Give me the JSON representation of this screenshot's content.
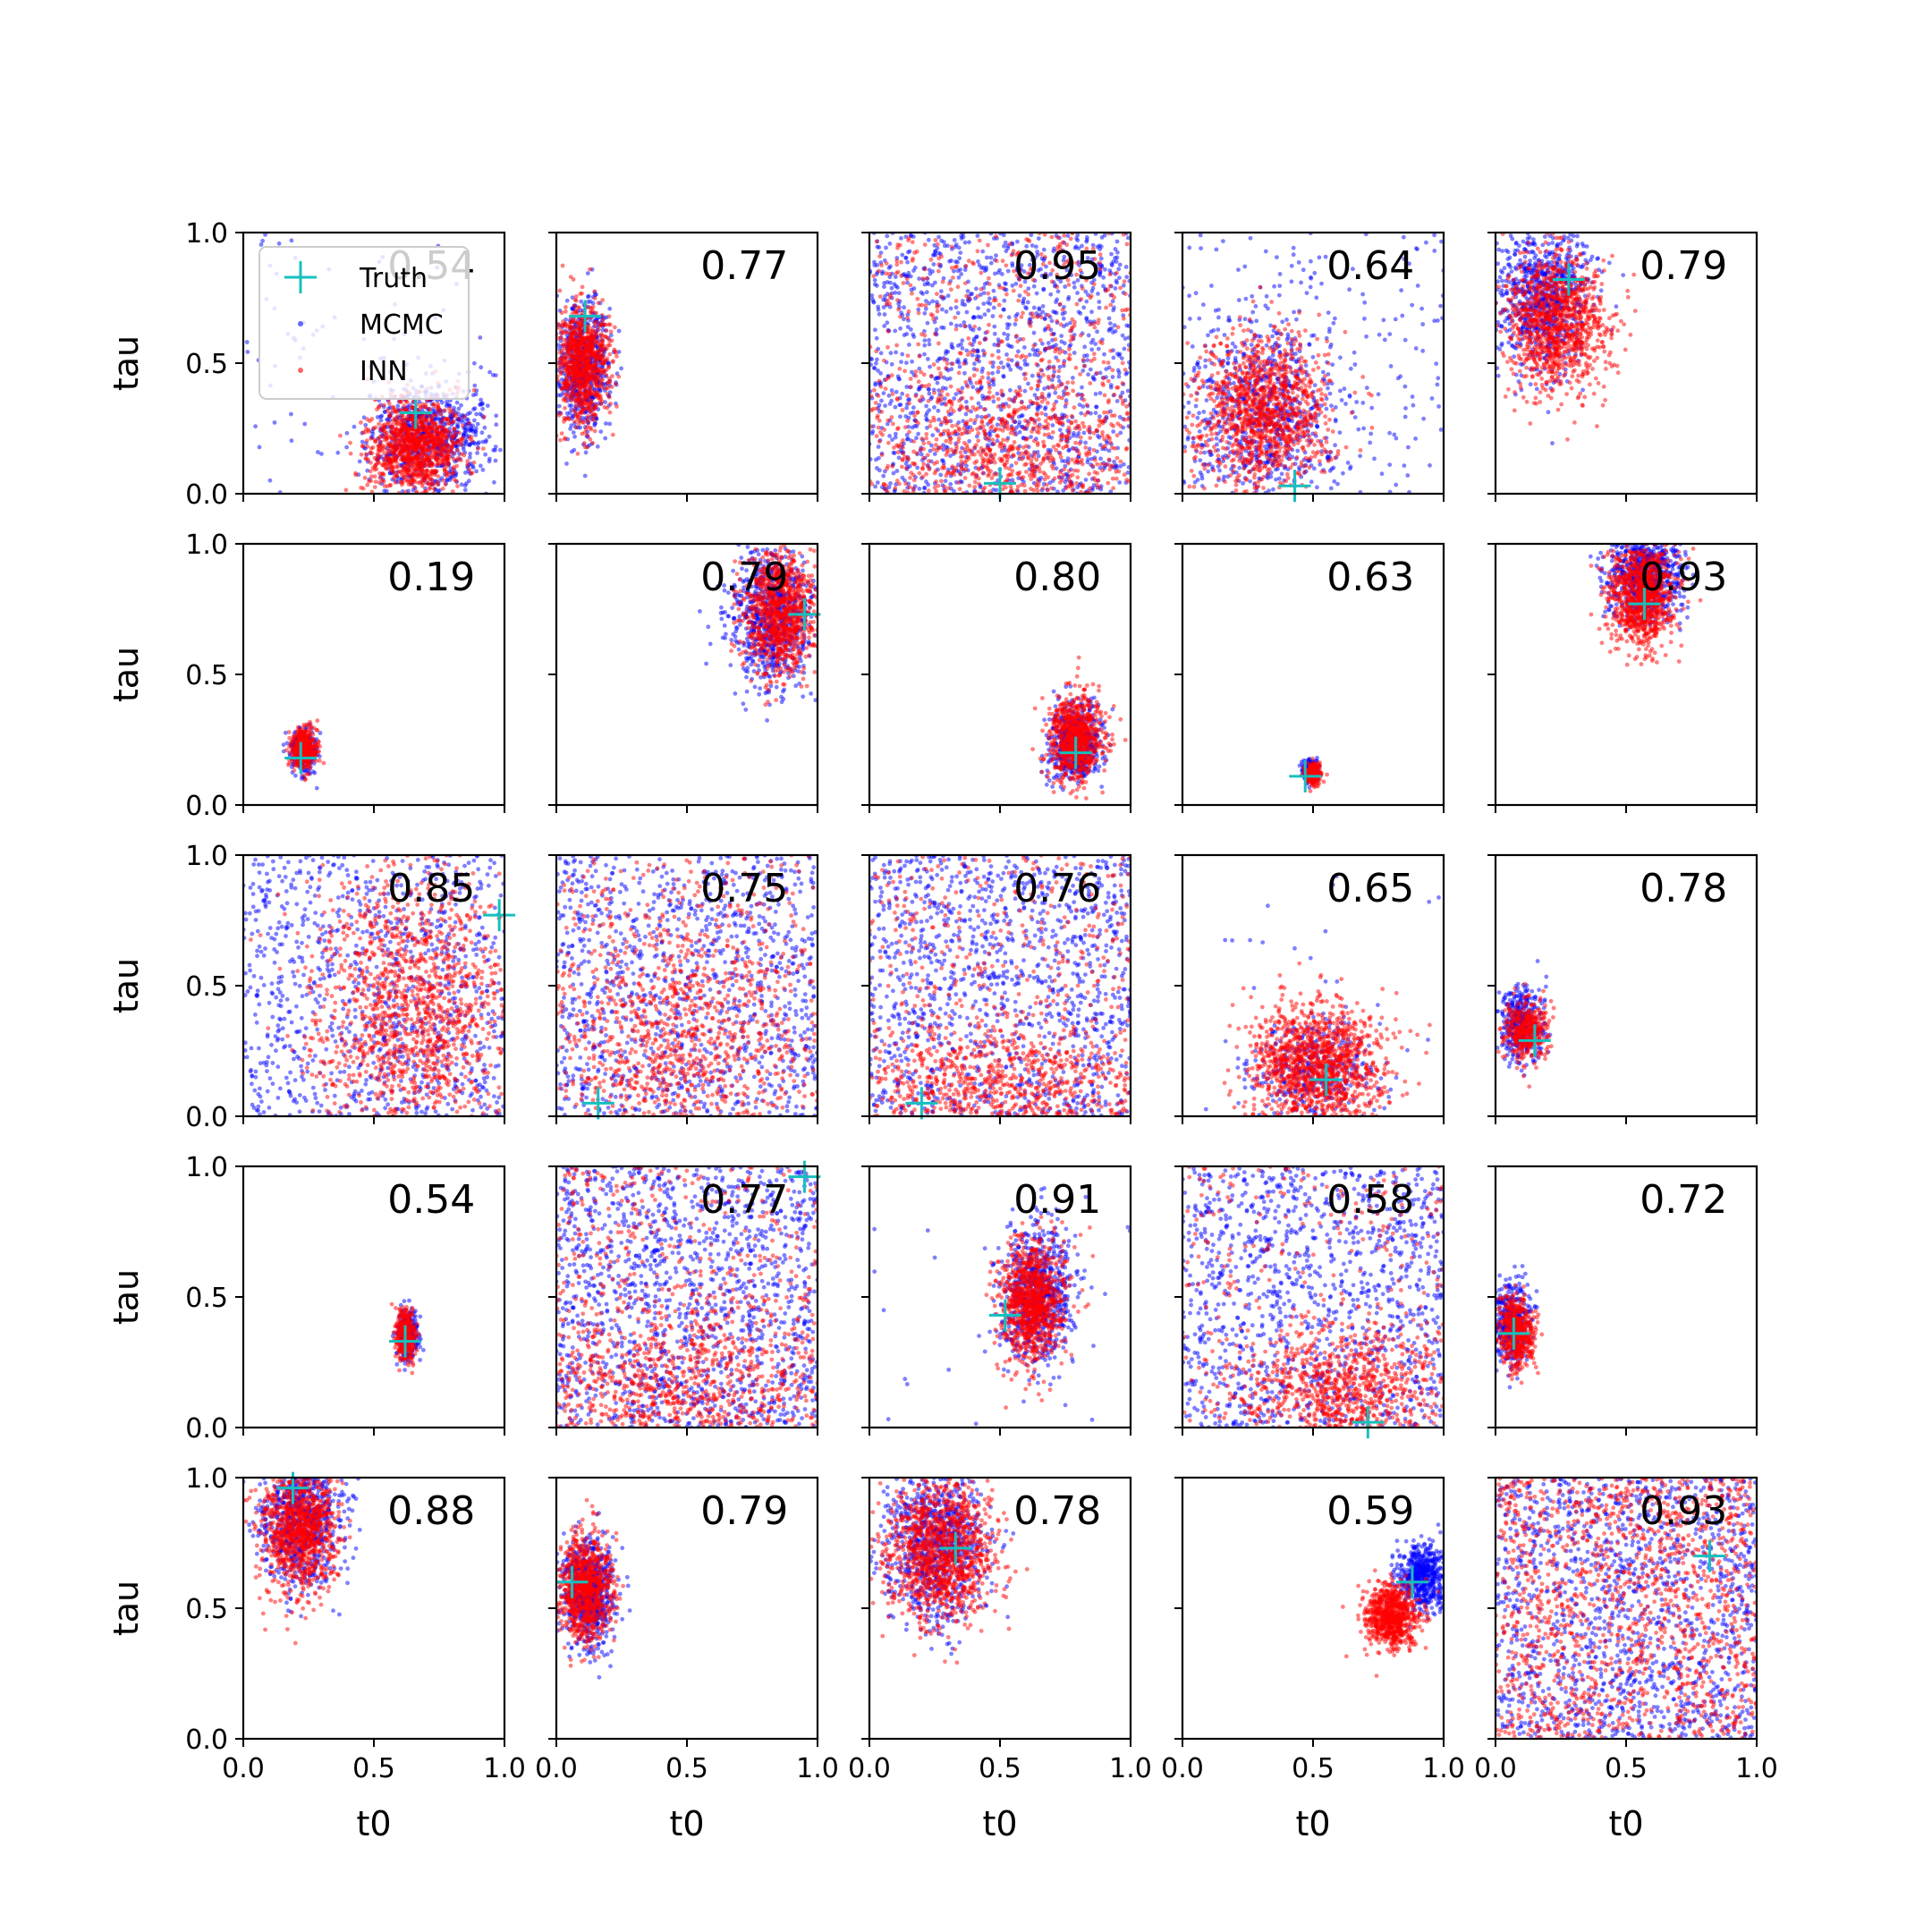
{
  "chart_data": {
    "type": "scatter",
    "layout": "5x5 grid of scatter panels",
    "xlabel": "t0",
    "ylabel": "tau",
    "xlim": [
      0.0,
      1.0
    ],
    "ylim": [
      0.0,
      1.0
    ],
    "x_ticks": [
      "0.0",
      "0.5",
      "1.0"
    ],
    "y_ticks": [
      "0.0",
      "0.5",
      "1.0"
    ],
    "legend": {
      "placement": "upper-left of first panel",
      "entries": [
        {
          "label": "Truth",
          "marker": "plus",
          "color": "#17bfbf"
        },
        {
          "label": "MCMC",
          "marker": "dot",
          "color": "#0000ff"
        },
        {
          "label": "INN",
          "marker": "dot",
          "color": "#ff0000"
        }
      ]
    },
    "panels": [
      {
        "score": "0.54",
        "truth": [
          0.66,
          0.31
        ],
        "mcmc": {
          "cx": 0.72,
          "cy": 0.22,
          "sx": 0.12,
          "sy": 0.1,
          "n": 800,
          "uniform": 0.1
        },
        "inn": {
          "cx": 0.66,
          "cy": 0.18,
          "sx": 0.09,
          "sy": 0.09,
          "n": 1100,
          "uniform": 0.0
        }
      },
      {
        "score": "0.77",
        "truth": [
          0.11,
          0.68
        ],
        "mcmc": {
          "cx": 0.1,
          "cy": 0.48,
          "sx": 0.05,
          "sy": 0.12,
          "n": 700,
          "uniform": 0
        },
        "inn": {
          "cx": 0.1,
          "cy": 0.5,
          "sx": 0.05,
          "sy": 0.11,
          "n": 900,
          "uniform": 0
        }
      },
      {
        "score": "0.95",
        "truth": [
          0.5,
          0.04
        ],
        "mcmc": {
          "cx": 0.5,
          "cy": 0.5,
          "sx": 0.3,
          "sy": 0.3,
          "n": 1300,
          "uniform": 1.0
        },
        "inn": {
          "cx": 0.55,
          "cy": 0.15,
          "sx": 0.25,
          "sy": 0.15,
          "n": 1300,
          "uniform": 0.45
        }
      },
      {
        "score": "0.64",
        "truth": [
          0.43,
          0.03
        ],
        "mcmc": {
          "cx": 0.3,
          "cy": 0.32,
          "sx": 0.14,
          "sy": 0.18,
          "n": 900,
          "uniform": 0.25
        },
        "inn": {
          "cx": 0.3,
          "cy": 0.32,
          "sx": 0.13,
          "sy": 0.15,
          "n": 1200,
          "uniform": 0
        }
      },
      {
        "score": "0.79",
        "truth": [
          0.28,
          0.82
        ],
        "mcmc": {
          "cx": 0.18,
          "cy": 0.75,
          "sx": 0.09,
          "sy": 0.14,
          "n": 800,
          "uniform": 0
        },
        "inn": {
          "cx": 0.23,
          "cy": 0.65,
          "sx": 0.1,
          "sy": 0.13,
          "n": 1100,
          "uniform": 0
        }
      },
      {
        "score": "0.19",
        "truth": [
          0.22,
          0.18
        ],
        "mcmc": {
          "cx": 0.23,
          "cy": 0.21,
          "sx": 0.025,
          "sy": 0.04,
          "n": 300,
          "uniform": 0
        },
        "inn": {
          "cx": 0.23,
          "cy": 0.22,
          "sx": 0.025,
          "sy": 0.04,
          "n": 400,
          "uniform": 0
        }
      },
      {
        "score": "0.79",
        "truth": [
          0.95,
          0.73
        ],
        "mcmc": {
          "cx": 0.83,
          "cy": 0.72,
          "sx": 0.08,
          "sy": 0.13,
          "n": 800,
          "uniform": 0
        },
        "inn": {
          "cx": 0.86,
          "cy": 0.74,
          "sx": 0.07,
          "sy": 0.12,
          "n": 1000,
          "uniform": 0
        }
      },
      {
        "score": "0.80",
        "truth": [
          0.79,
          0.2
        ],
        "mcmc": {
          "cx": 0.79,
          "cy": 0.24,
          "sx": 0.05,
          "sy": 0.07,
          "n": 600,
          "uniform": 0
        },
        "inn": {
          "cx": 0.79,
          "cy": 0.26,
          "sx": 0.05,
          "sy": 0.08,
          "n": 800,
          "uniform": 0
        }
      },
      {
        "score": "0.63",
        "truth": [
          0.47,
          0.11
        ],
        "mcmc": {
          "cx": 0.49,
          "cy": 0.13,
          "sx": 0.015,
          "sy": 0.02,
          "n": 200,
          "uniform": 0
        },
        "inn": {
          "cx": 0.5,
          "cy": 0.12,
          "sx": 0.015,
          "sy": 0.02,
          "n": 250,
          "uniform": 0
        }
      },
      {
        "score": "0.93",
        "truth": [
          0.57,
          0.77
        ],
        "mcmc": {
          "cx": 0.57,
          "cy": 0.88,
          "sx": 0.07,
          "sy": 0.09,
          "n": 800,
          "uniform": 0
        },
        "inn": {
          "cx": 0.56,
          "cy": 0.8,
          "sx": 0.06,
          "sy": 0.1,
          "n": 1000,
          "uniform": 0
        }
      },
      {
        "score": "0.85",
        "truth": [
          0.98,
          0.77
        ],
        "mcmc": {
          "cx": 0.5,
          "cy": 0.5,
          "sx": 0.3,
          "sy": 0.3,
          "n": 1000,
          "uniform": 1.0
        },
        "inn": {
          "cx": 0.65,
          "cy": 0.4,
          "sx": 0.2,
          "sy": 0.28,
          "n": 1400,
          "uniform": 0
        }
      },
      {
        "score": "0.75",
        "truth": [
          0.16,
          0.05
        ],
        "mcmc": {
          "cx": 0.5,
          "cy": 0.5,
          "sx": 0.3,
          "sy": 0.3,
          "n": 1100,
          "uniform": 1.0
        },
        "inn": {
          "cx": 0.45,
          "cy": 0.3,
          "sx": 0.25,
          "sy": 0.25,
          "n": 1200,
          "uniform": 0.3
        }
      },
      {
        "score": "0.76",
        "truth": [
          0.2,
          0.05
        ],
        "mcmc": {
          "cx": 0.5,
          "cy": 0.5,
          "sx": 0.3,
          "sy": 0.3,
          "n": 1200,
          "uniform": 1.0
        },
        "inn": {
          "cx": 0.5,
          "cy": 0.12,
          "sx": 0.3,
          "sy": 0.12,
          "n": 1200,
          "uniform": 0.35
        }
      },
      {
        "score": "0.65",
        "truth": [
          0.55,
          0.14
        ],
        "mcmc": {
          "cx": 0.5,
          "cy": 0.18,
          "sx": 0.12,
          "sy": 0.1,
          "n": 400,
          "uniform": 0.05
        },
        "inn": {
          "cx": 0.52,
          "cy": 0.2,
          "sx": 0.13,
          "sy": 0.12,
          "n": 1300,
          "uniform": 0
        }
      },
      {
        "score": "0.78",
        "truth": [
          0.15,
          0.29
        ],
        "mcmc": {
          "cx": 0.1,
          "cy": 0.35,
          "sx": 0.04,
          "sy": 0.07,
          "n": 400,
          "uniform": 0
        },
        "inn": {
          "cx": 0.12,
          "cy": 0.33,
          "sx": 0.04,
          "sy": 0.06,
          "n": 400,
          "uniform": 0
        }
      },
      {
        "score": "0.54",
        "truth": [
          0.62,
          0.33
        ],
        "mcmc": {
          "cx": 0.63,
          "cy": 0.36,
          "sx": 0.02,
          "sy": 0.05,
          "n": 250,
          "uniform": 0
        },
        "inn": {
          "cx": 0.62,
          "cy": 0.35,
          "sx": 0.02,
          "sy": 0.05,
          "n": 300,
          "uniform": 0
        }
      },
      {
        "score": "0.77",
        "truth": [
          0.95,
          0.96
        ],
        "mcmc": {
          "cx": 0.5,
          "cy": 0.5,
          "sx": 0.3,
          "sy": 0.3,
          "n": 1400,
          "uniform": 1.0
        },
        "inn": {
          "cx": 0.5,
          "cy": 0.15,
          "sx": 0.3,
          "sy": 0.18,
          "n": 1300,
          "uniform": 0.4
        }
      },
      {
        "score": "0.91",
        "truth": [
          0.52,
          0.43
        ],
        "mcmc": {
          "cx": 0.64,
          "cy": 0.5,
          "sx": 0.07,
          "sy": 0.13,
          "n": 800,
          "uniform": 0.02
        },
        "inn": {
          "cx": 0.62,
          "cy": 0.48,
          "sx": 0.06,
          "sy": 0.12,
          "n": 1000,
          "uniform": 0
        }
      },
      {
        "score": "0.58",
        "truth": [
          0.71,
          0.02
        ],
        "mcmc": {
          "cx": 0.5,
          "cy": 0.5,
          "sx": 0.3,
          "sy": 0.3,
          "n": 1200,
          "uniform": 1.0
        },
        "inn": {
          "cx": 0.62,
          "cy": 0.12,
          "sx": 0.2,
          "sy": 0.14,
          "n": 1200,
          "uniform": 0.25
        }
      },
      {
        "score": "0.72",
        "truth": [
          0.07,
          0.36
        ],
        "mcmc": {
          "cx": 0.06,
          "cy": 0.4,
          "sx": 0.035,
          "sy": 0.08,
          "n": 400,
          "uniform": 0
        },
        "inn": {
          "cx": 0.08,
          "cy": 0.37,
          "sx": 0.035,
          "sy": 0.07,
          "n": 500,
          "uniform": 0
        }
      },
      {
        "score": "0.88",
        "truth": [
          0.19,
          0.96
        ],
        "mcmc": {
          "cx": 0.22,
          "cy": 0.83,
          "sx": 0.08,
          "sy": 0.12,
          "n": 800,
          "uniform": 0
        },
        "inn": {
          "cx": 0.22,
          "cy": 0.8,
          "sx": 0.07,
          "sy": 0.12,
          "n": 1000,
          "uniform": 0
        }
      },
      {
        "score": "0.79",
        "truth": [
          0.06,
          0.6
        ],
        "mcmc": {
          "cx": 0.12,
          "cy": 0.56,
          "sx": 0.05,
          "sy": 0.1,
          "n": 700,
          "uniform": 0
        },
        "inn": {
          "cx": 0.11,
          "cy": 0.57,
          "sx": 0.05,
          "sy": 0.1,
          "n": 900,
          "uniform": 0
        }
      },
      {
        "score": "0.78",
        "truth": [
          0.33,
          0.73
        ],
        "mcmc": {
          "cx": 0.25,
          "cy": 0.75,
          "sx": 0.1,
          "sy": 0.15,
          "n": 900,
          "uniform": 0
        },
        "inn": {
          "cx": 0.27,
          "cy": 0.72,
          "sx": 0.1,
          "sy": 0.14,
          "n": 1200,
          "uniform": 0
        }
      },
      {
        "score": "0.59",
        "truth": [
          0.88,
          0.6
        ],
        "mcmc": {
          "cx": 0.92,
          "cy": 0.62,
          "sx": 0.05,
          "sy": 0.06,
          "n": 600,
          "uniform": 0
        },
        "inn": {
          "cx": 0.8,
          "cy": 0.47,
          "sx": 0.05,
          "sy": 0.06,
          "n": 800,
          "uniform": 0
        }
      },
      {
        "score": "0.93",
        "truth": [
          0.82,
          0.7
        ],
        "mcmc": {
          "cx": 0.5,
          "cy": 0.5,
          "sx": 0.3,
          "sy": 0.3,
          "n": 1400,
          "uniform": 1.0
        },
        "inn": {
          "cx": 0.5,
          "cy": 0.5,
          "sx": 0.3,
          "sy": 0.3,
          "n": 1400,
          "uniform": 1.0
        }
      }
    ]
  }
}
